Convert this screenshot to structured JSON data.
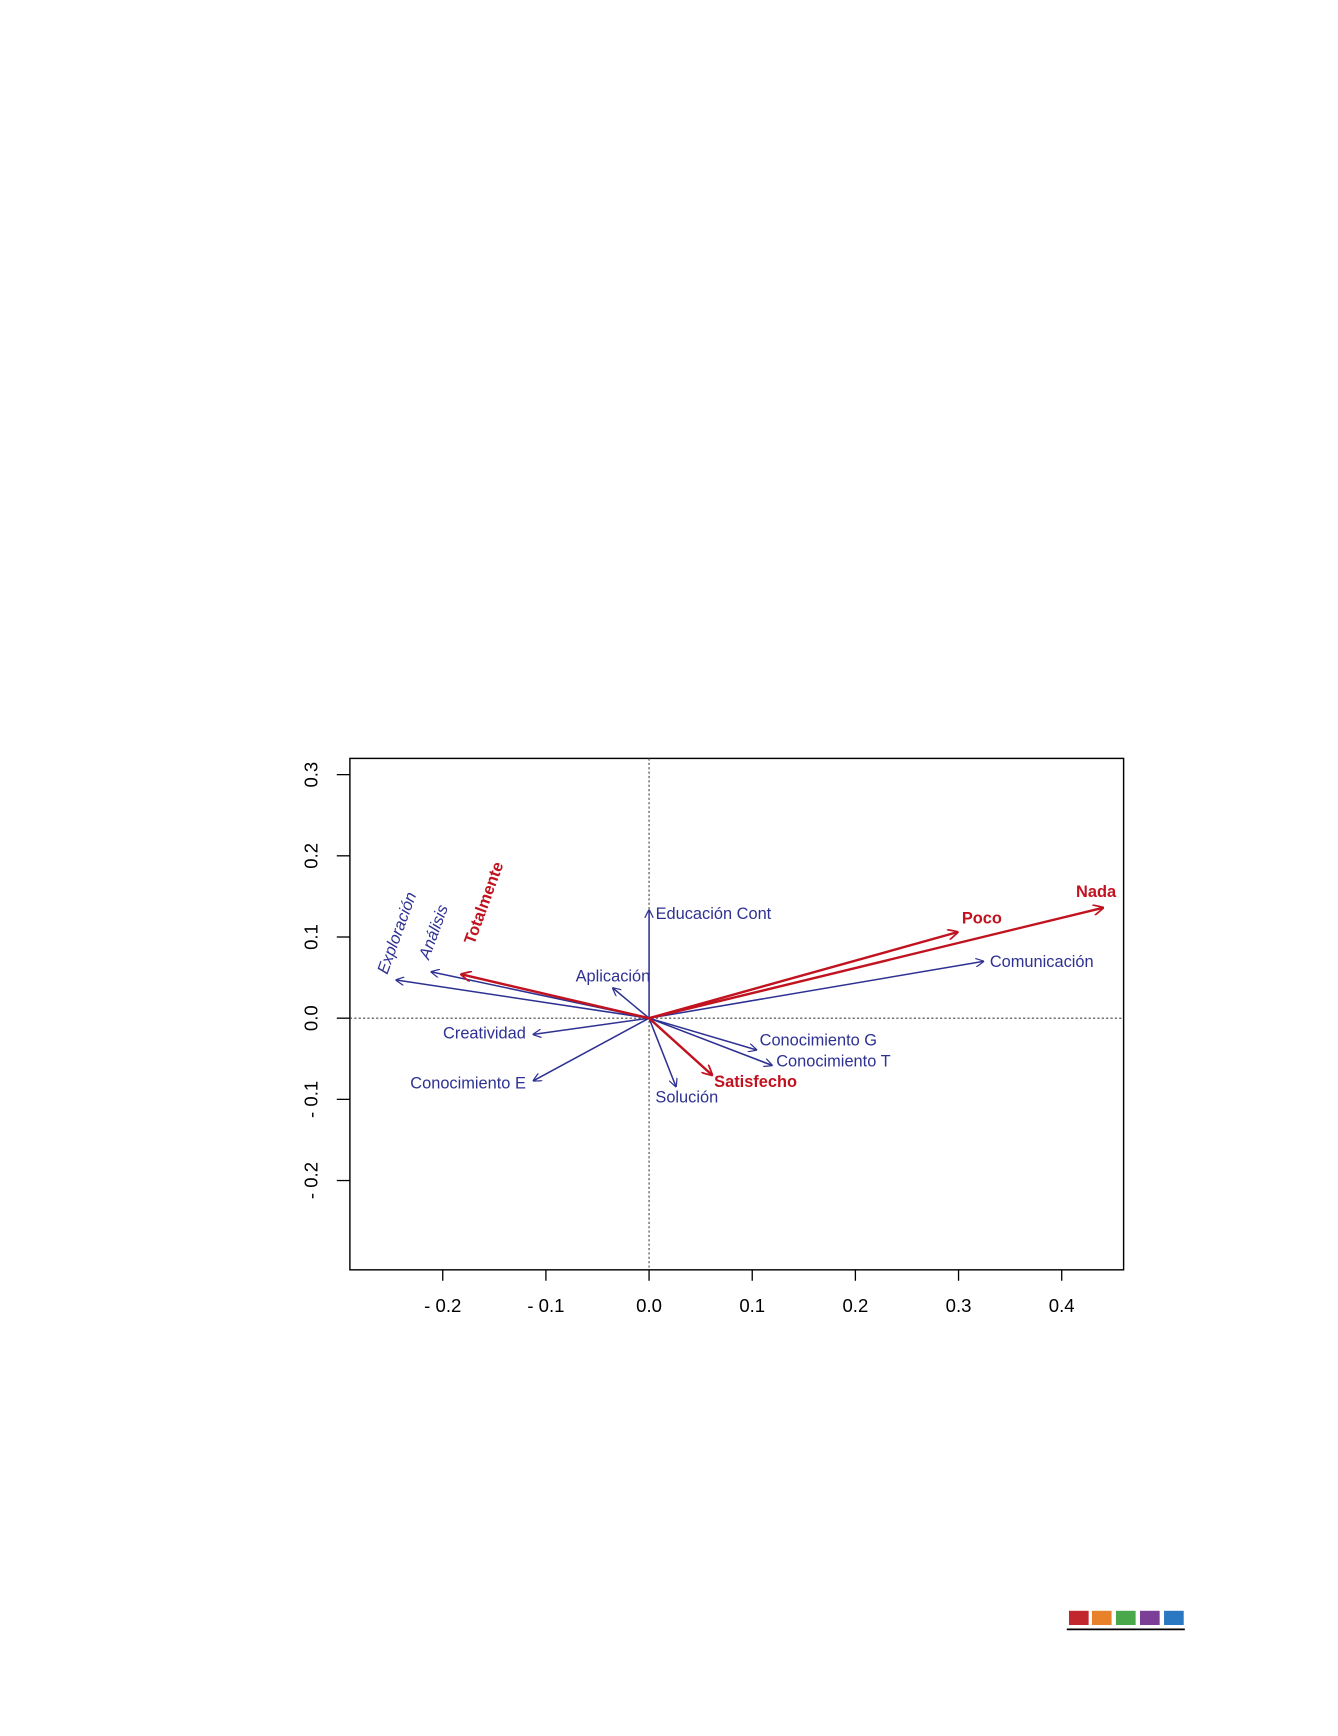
{
  "chart_data": {
    "type": "biplot",
    "xlim": [
      -0.29,
      0.46
    ],
    "ylim": [
      -0.31,
      0.32
    ],
    "xticks": [
      {
        "value": -0.2,
        "label": "- 0.2"
      },
      {
        "value": -0.1,
        "label": "- 0.1"
      },
      {
        "value": 0,
        "label": "0.0"
      },
      0.1,
      0.2,
      0.3,
      0.4
    ],
    "yticks": [
      {
        "value": -0.2,
        "label": "- 0.2"
      },
      {
        "value": -0.1,
        "label": "- 0.1"
      },
      {
        "value": 0,
        "label": "0.0"
      },
      0.1,
      0.2,
      0.3
    ],
    "series": [
      {
        "color": "#2e3192",
        "labels": [
          "Exploración",
          "Análisis",
          "Aplicación",
          "Educación Cont",
          "Comunicación",
          "Creatividad",
          "Conocimiento E",
          "Solución",
          "Conocimiento G",
          "Conocimiento T"
        ],
        "x": [
          -0.245,
          -0.211,
          -0.035,
          0,
          0.324,
          -0.112,
          -0.112,
          0.026,
          0.104,
          0.119
        ],
        "values": [
          0.047,
          0.057,
          0.037,
          0.133,
          0.07,
          -0.02,
          -0.077,
          -0.084,
          -0.039,
          -0.058
        ]
      },
      {
        "color": "#c1121f",
        "labels": [
          "Totalmente",
          "Poco",
          "Nada",
          "Satisfecho"
        ],
        "x": [
          -0.182,
          0.299,
          0.44,
          0.061
        ],
        "values": [
          0.054,
          0.106,
          0.136,
          -0.07
        ]
      }
    ]
  }
}
